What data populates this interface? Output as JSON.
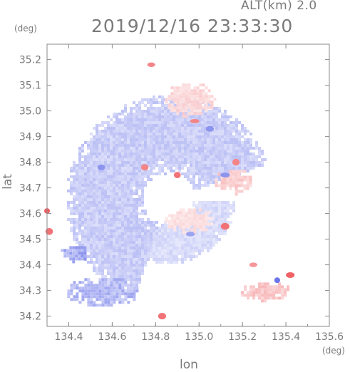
{
  "header": {
    "altitude": "ALT(km)  2.0",
    "timestamp": "2019/12/16  23:33:30"
  },
  "chart_data": {
    "type": "heatmap",
    "title": "2019/12/16 23:33:30",
    "xlabel": "lon",
    "ylabel": "lat",
    "x_unit": "(deg)",
    "y_unit": "(deg)",
    "xlim": [
      134.3,
      135.6
    ],
    "ylim": [
      34.16,
      35.26
    ],
    "x_ticks": [
      134.4,
      134.6,
      134.8,
      135.0,
      135.2,
      135.4,
      135.6
    ],
    "x_tick_labels": [
      "134.4",
      "134.6",
      "134.8",
      "135.0",
      "135.2",
      "135.4",
      "135.6"
    ],
    "y_ticks": [
      34.2,
      34.3,
      34.4,
      34.5,
      34.6,
      34.7,
      34.8,
      34.9,
      35.0,
      35.1,
      35.2
    ],
    "y_tick_labels": [
      "34.2",
      "34.3",
      "34.4",
      "34.5",
      "34.6",
      "34.7",
      "34.8",
      "34.9",
      "35.0",
      "35.1",
      "35.2"
    ],
    "grid": false,
    "colors": {
      "negative": "#9aa6f2",
      "negative_strong": "#5a66e6",
      "positive": "#f4c2c4",
      "positive_strong": "#ee5055",
      "axis": "#8a8a8a"
    },
    "regions": [
      {
        "type": "arc_band",
        "center": [
          134.86,
          34.66
        ],
        "r_deg": [
          0.12,
          0.48
        ],
        "angle_deg": [
          20,
          250
        ],
        "sign": "negative",
        "intensity": 0.35
      },
      {
        "type": "arc_band",
        "center": [
          134.86,
          34.66
        ],
        "r_deg": [
          0.1,
          0.3
        ],
        "angle_deg": [
          250,
          360
        ],
        "sign": "negative",
        "intensity": 0.25
      },
      {
        "type": "blob",
        "center": [
          134.55,
          34.3
        ],
        "radii": [
          0.17,
          0.07
        ],
        "sign": "negative",
        "intensity": 0.5
      },
      {
        "type": "blob",
        "center": [
          134.42,
          34.45
        ],
        "radii": [
          0.07,
          0.04
        ],
        "sign": "negative",
        "intensity": 0.6
      },
      {
        "type": "blob",
        "center": [
          135.15,
          34.73
        ],
        "radii": [
          0.09,
          0.06
        ],
        "sign": "positive",
        "intensity": 0.3
      },
      {
        "type": "blob",
        "center": [
          135.3,
          34.3
        ],
        "radii": [
          0.12,
          0.05
        ],
        "sign": "positive",
        "intensity": 0.35
      },
      {
        "type": "blob",
        "center": [
          134.95,
          35.05
        ],
        "radii": [
          0.12,
          0.08
        ],
        "sign": "positive",
        "intensity": 0.25
      },
      {
        "type": "blob",
        "center": [
          134.95,
          34.58
        ],
        "radii": [
          0.12,
          0.06
        ],
        "sign": "positive",
        "intensity": 0.2
      }
    ],
    "hotspots": [
      {
        "lon": 134.3,
        "lat": 34.61,
        "sign": "positive",
        "intensity": 0.9
      },
      {
        "lon": 134.31,
        "lat": 34.53,
        "sign": "positive",
        "intensity": 0.8
      },
      {
        "lon": 135.42,
        "lat": 34.36,
        "sign": "positive",
        "intensity": 0.9
      },
      {
        "lon": 135.36,
        "lat": 34.34,
        "sign": "negative",
        "intensity": 0.9
      },
      {
        "lon": 134.83,
        "lat": 34.2,
        "sign": "positive",
        "intensity": 0.8
      },
      {
        "lon": 134.98,
        "lat": 34.96,
        "sign": "positive",
        "intensity": 0.7
      },
      {
        "lon": 135.05,
        "lat": 34.93,
        "sign": "negative",
        "intensity": 0.7
      },
      {
        "lon": 134.75,
        "lat": 34.78,
        "sign": "positive",
        "intensity": 0.7
      },
      {
        "lon": 134.9,
        "lat": 34.75,
        "sign": "positive",
        "intensity": 0.8
      },
      {
        "lon": 135.17,
        "lat": 34.8,
        "sign": "positive",
        "intensity": 0.7
      },
      {
        "lon": 135.12,
        "lat": 34.75,
        "sign": "negative",
        "intensity": 0.7
      },
      {
        "lon": 134.78,
        "lat": 35.18,
        "sign": "positive",
        "intensity": 0.7
      },
      {
        "lon": 134.55,
        "lat": 34.78,
        "sign": "negative",
        "intensity": 0.7
      },
      {
        "lon": 135.12,
        "lat": 34.55,
        "sign": "positive",
        "intensity": 0.8
      },
      {
        "lon": 134.96,
        "lat": 34.52,
        "sign": "negative",
        "intensity": 0.6
      },
      {
        "lon": 135.25,
        "lat": 34.4,
        "sign": "positive",
        "intensity": 0.6
      }
    ]
  }
}
